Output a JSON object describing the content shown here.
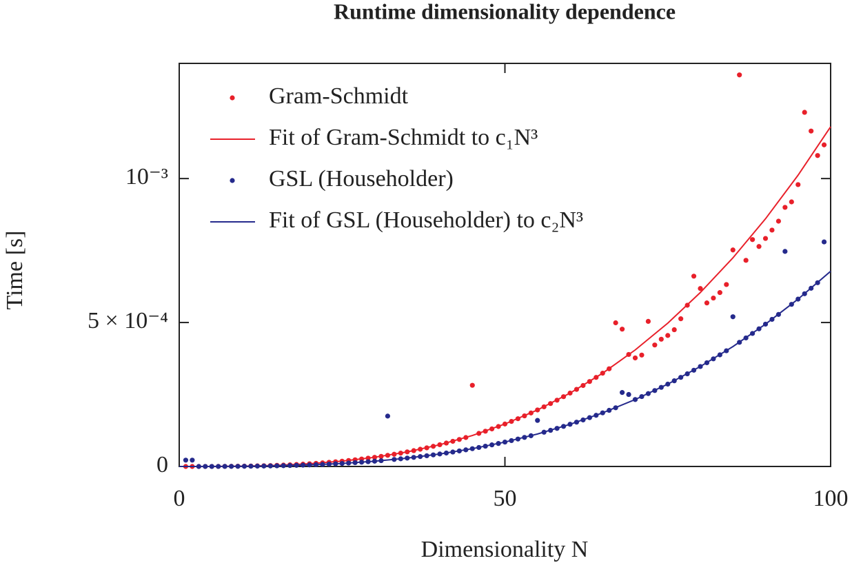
{
  "chart_data": {
    "type": "scatter",
    "title": "Runtime dimensionality dependence",
    "xlabel": "Dimensionality N",
    "ylabel": "Time [s]",
    "xlim": [
      0,
      100
    ],
    "ylim": [
      0,
      0.0014
    ],
    "xticks": [
      0,
      50,
      100
    ],
    "yticks": [
      0,
      {
        "value": 0.0005,
        "label": "5 × 10⁻⁴"
      },
      {
        "value": 0.001,
        "label": "10⁻³"
      }
    ],
    "legend": "upper left",
    "series": [
      {
        "name": "Gram-Schmidt",
        "color": "#e8202a",
        "style": "markers",
        "x": [
          1,
          2,
          3,
          4,
          5,
          6,
          7,
          8,
          9,
          10,
          11,
          12,
          13,
          14,
          15,
          16,
          17,
          18,
          19,
          20,
          21,
          22,
          23,
          24,
          25,
          26,
          27,
          28,
          29,
          30,
          31,
          32,
          33,
          34,
          35,
          36,
          37,
          38,
          39,
          40,
          41,
          42,
          43,
          44,
          45,
          46,
          47,
          48,
          49,
          50,
          51,
          52,
          53,
          54,
          55,
          56,
          57,
          58,
          59,
          60,
          61,
          62,
          63,
          64,
          65,
          66,
          67,
          68,
          69,
          70,
          71,
          72,
          73,
          74,
          75,
          76,
          77,
          78,
          79,
          80,
          81,
          82,
          83,
          84,
          85,
          86,
          87,
          88,
          89,
          90,
          91,
          92,
          93,
          94,
          95,
          96,
          97,
          98,
          99
        ],
        "values": [
          1.18e-09,
          9.4e-09,
          3.2e-08,
          7.6e-08,
          1.5e-07,
          2.5e-07,
          4e-07,
          6e-07,
          8.6e-07,
          1.18e-06,
          1.57e-06,
          2.04e-06,
          2.6e-06,
          3.2e-06,
          4e-06,
          4.8e-06,
          5.8e-06,
          6.9e-06,
          8.1e-06,
          9.4e-06,
          1.09e-05,
          1.26e-05,
          1.44e-05,
          1.63e-05,
          1.84e-05,
          2.07e-05,
          2.32e-05,
          2.59e-05,
          2.88e-05,
          3.19e-05,
          3.52e-05,
          3.87e-05,
          4.24e-05,
          4.64e-05,
          5.06e-05,
          5.5e-05,
          5.98e-05,
          6.47e-05,
          7e-05,
          7.55e-05,
          8.13e-05,
          8.74e-05,
          9.38e-05,
          0.0001005,
          0.000282,
          0.0001149,
          0.0001225,
          0.0001305,
          0.0001388,
          0.0001475,
          0.0001565,
          0.0001659,
          0.0001757,
          0.0001858,
          0.0001963,
          0.0002072,
          0.0002185,
          0.0002302,
          0.0002424,
          0.0002549,
          0.0002678,
          0.0002812,
          0.0002951,
          0.0003093,
          0.000324,
          0.0003393,
          0.000499,
          0.000477,
          0.000389,
          0.000377,
          0.000387,
          0.000504,
          0.000422,
          0.000442,
          0.000455,
          0.000475,
          0.000513,
          0.00056,
          0.000661,
          0.000618,
          0.000568,
          0.000585,
          0.000604,
          0.000632,
          0.000752,
          0.00136,
          0.000716,
          0.000788,
          0.000764,
          0.000792,
          0.000821,
          0.000852,
          0.0009,
          0.000919,
          0.000979,
          0.00123,
          0.001165,
          0.00108,
          0.001117
        ]
      },
      {
        "name": "Fit of Gram-Schmidt to c₁N³",
        "color": "#e8202a",
        "style": "line",
        "x": [
          0,
          5,
          10,
          15,
          20,
          25,
          30,
          35,
          40,
          45,
          50,
          55,
          60,
          65,
          70,
          75,
          80,
          85,
          90,
          95,
          100
        ],
        "values": [
          0,
          1.475e-07,
          1.18e-06,
          3.98e-06,
          9.44e-06,
          1.844e-05,
          3.186e-05,
          5.06e-05,
          7.552e-05,
          0.00010753,
          0.0001475,
          0.0001963,
          0.0002549,
          0.000324,
          0.0004047,
          0.0004978,
          0.0006042,
          0.0007246,
          0.0008602,
          0.0010117,
          0.00118
        ]
      },
      {
        "name": "GSL (Householder)",
        "color": "#252a8c",
        "style": "markers",
        "x": [
          1,
          2,
          3,
          4,
          5,
          6,
          7,
          8,
          9,
          10,
          11,
          12,
          13,
          14,
          15,
          16,
          17,
          18,
          19,
          20,
          21,
          22,
          23,
          24,
          25,
          26,
          27,
          28,
          29,
          30,
          31,
          32,
          33,
          34,
          35,
          36,
          37,
          38,
          39,
          40,
          41,
          42,
          43,
          44,
          45,
          46,
          47,
          48,
          49,
          50,
          51,
          52,
          53,
          54,
          55,
          56,
          57,
          58,
          59,
          60,
          61,
          62,
          63,
          64,
          65,
          66,
          67,
          68,
          69,
          70,
          71,
          72,
          73,
          74,
          75,
          76,
          77,
          78,
          79,
          80,
          81,
          82,
          83,
          84,
          85,
          86,
          87,
          88,
          89,
          90,
          91,
          92,
          93,
          94,
          95,
          96,
          97,
          98,
          99
        ],
        "values": [
          2.2e-05,
          2.2e-05,
          1.8e-08,
          4.3e-08,
          8.5e-08,
          1.5e-07,
          2.3e-07,
          3.5e-07,
          4.9e-07,
          6.8e-07,
          9e-07,
          1.17e-06,
          1.49e-06,
          1.86e-06,
          2.29e-06,
          2.78e-06,
          3.33e-06,
          3.95e-06,
          4.65e-06,
          5.42e-06,
          6.28e-06,
          7.22e-06,
          8.25e-06,
          9.37e-06,
          1.06e-05,
          1.19e-05,
          1.33e-05,
          1.49e-05,
          1.65e-05,
          1.83e-05,
          2.02e-05,
          0.000175,
          2.44e-05,
          2.66e-05,
          2.91e-05,
          3.16e-05,
          3.44e-05,
          3.72e-05,
          4.02e-05,
          4.34e-05,
          4.67e-05,
          5.02e-05,
          5.39e-05,
          5.77e-05,
          6.18e-05,
          6.6e-05,
          7.04e-05,
          7.5e-05,
          7.98e-05,
          8.48e-05,
          8.99e-05,
          9.53e-05,
          0.000101,
          0.0001068,
          0.00016,
          0.000119,
          0.0001256,
          0.0001323,
          0.0001393,
          0.0001465,
          0.0001539,
          0.0001616,
          0.0001696,
          0.0001777,
          0.0001862,
          0.000195,
          0.0002039,
          0.000257,
          0.00025,
          0.0002325,
          0.0002427,
          0.0002531,
          0.0002637,
          0.0002748,
          0.000286,
          0.0002976,
          0.0003095,
          0.0003218,
          0.0003343,
          0.0003472,
          0.0003603,
          0.0003738,
          0.0003877,
          0.0004019,
          0.00052,
          0.0004312,
          0.0004465,
          0.000462,
          0.000478,
          0.0004943,
          0.0005109,
          0.000528,
          0.000747,
          0.0005632,
          0.0005813,
          0.0005999,
          0.0006189,
          0.0006382,
          0.00078
        ]
      },
      {
        "name": "Fit of GSL (Householder) to c₂N³",
        "color": "#252a8c",
        "style": "line",
        "x": [
          0,
          5,
          10,
          15,
          20,
          25,
          30,
          35,
          40,
          45,
          50,
          55,
          60,
          65,
          70,
          75,
          80,
          85,
          90,
          95,
          100
        ],
        "values": [
          0,
          8.5e-08,
          6.78e-07,
          2.29e-06,
          5.42e-06,
          1.06e-05,
          1.831e-05,
          2.907e-05,
          4.339e-05,
          6.178e-05,
          8.475e-05,
          0.0001128,
          0.0001465,
          0.0001862,
          0.0002325,
          0.0002861,
          0.0003472,
          0.0004164,
          0.0004943,
          0.0005813,
          0.000678
        ]
      }
    ]
  }
}
